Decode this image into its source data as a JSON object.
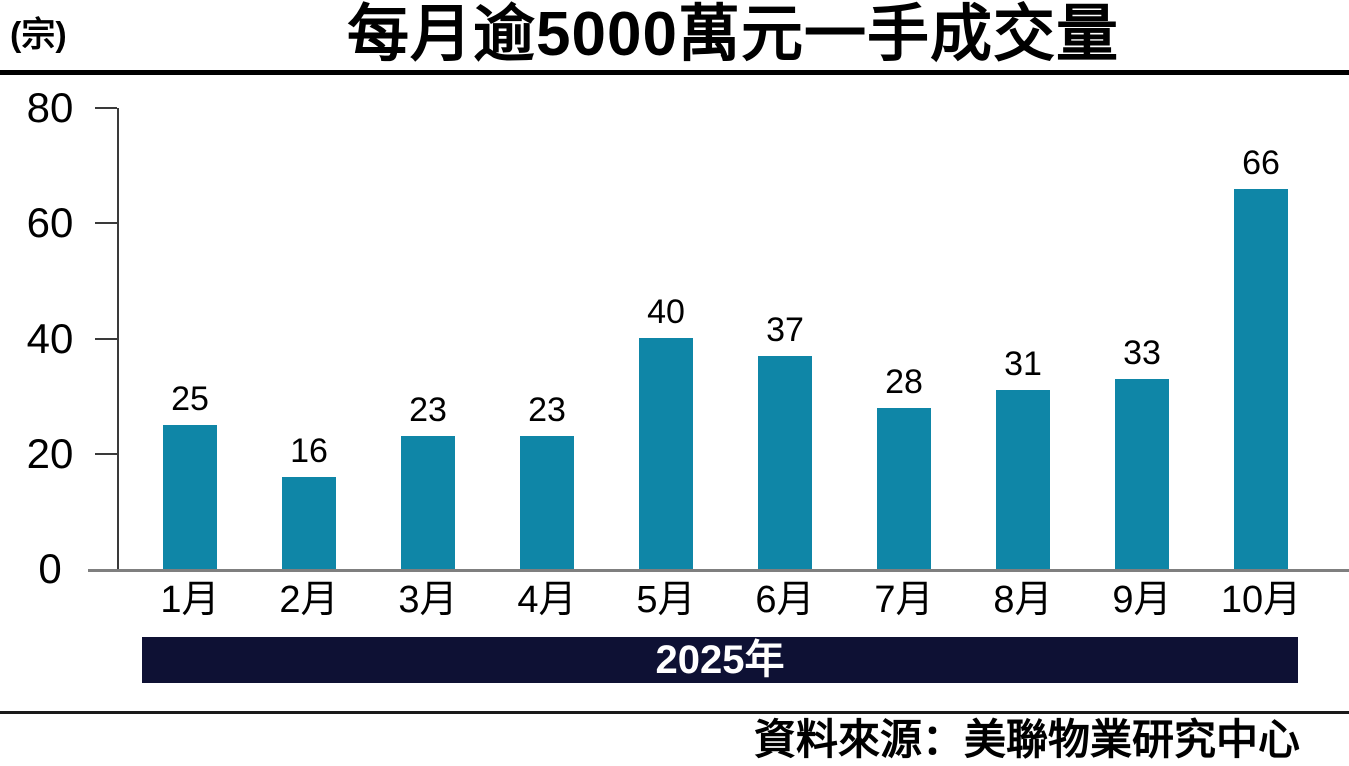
{
  "header": {
    "unit_label": "(宗)",
    "title": "每月逾5000萬元一手成交量"
  },
  "footer": {
    "year_banner": "2025年",
    "source": "資料來源：美聯物業研究中心"
  },
  "colors": {
    "bar": "#0f86a7",
    "banner_bg": "#0e1134",
    "banner_text": "#ffffff",
    "baseline": "#7f7f7f",
    "axis": "#3a3a3a",
    "title_rule": "#000000"
  },
  "chart_data": {
    "type": "bar",
    "title": "每月逾5000萬元一手成交量",
    "categories": [
      "1月",
      "2月",
      "3月",
      "4月",
      "5月",
      "6月",
      "7月",
      "8月",
      "9月",
      "10月"
    ],
    "values": [
      25,
      16,
      23,
      23,
      40,
      37,
      28,
      31,
      33,
      66
    ],
    "xlabel": "2025年",
    "ylabel": "(宗)",
    "ylim": [
      0,
      80
    ],
    "yticks": [
      0,
      20,
      40,
      60,
      80
    ],
    "grid": false,
    "legend": false,
    "bar_color": "#0f86a7"
  }
}
